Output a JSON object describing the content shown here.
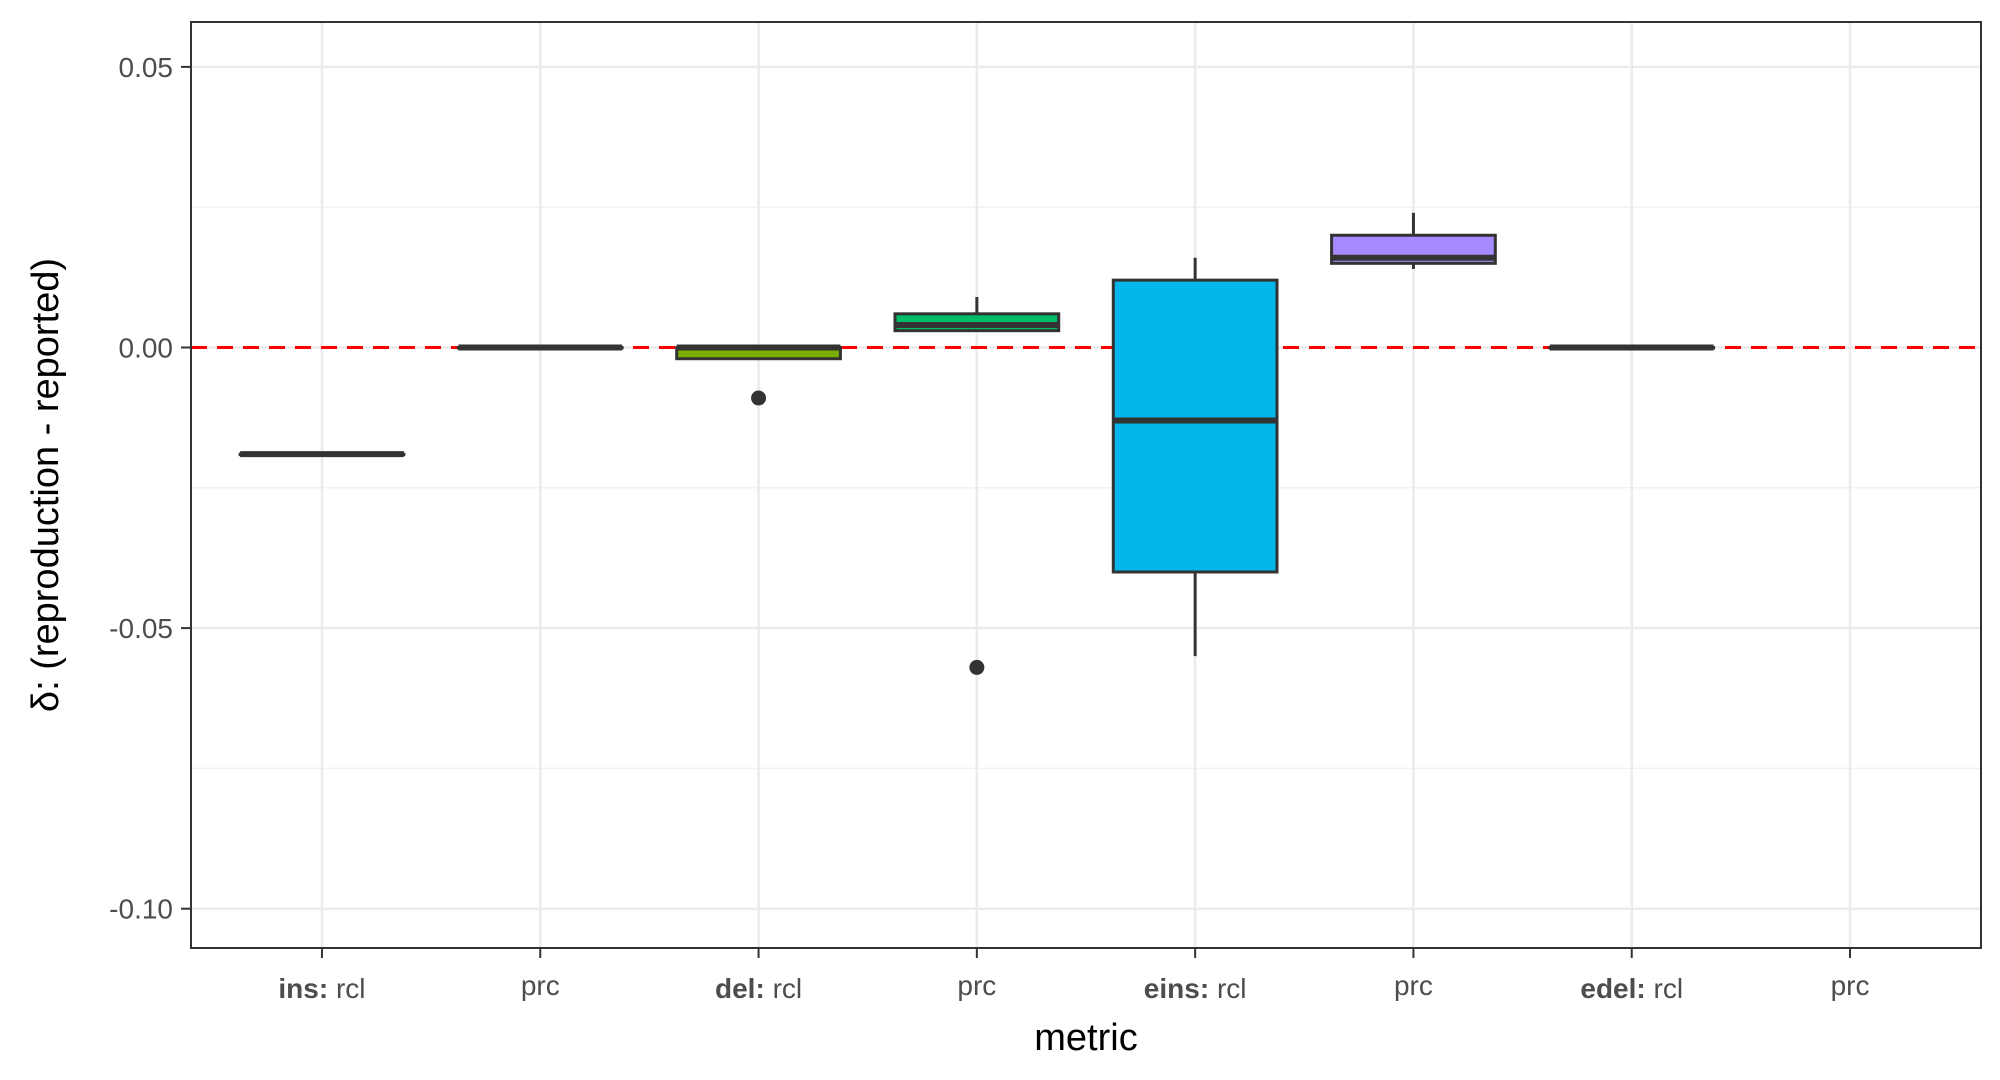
{
  "chart_data": {
    "type": "box",
    "xlabel": "metric",
    "ylabel": "δ: (reproduction - reported)",
    "ylim": [
      -0.107,
      0.058
    ],
    "y_ticks": [
      {
        "value": 0.05,
        "label": "0.05"
      },
      {
        "value": 0.0,
        "label": "0.00"
      },
      {
        "value": -0.05,
        "label": "-0.05"
      },
      {
        "value": -0.1,
        "label": "-0.10"
      }
    ],
    "y_minor_ticks": [
      0.025,
      -0.025,
      -0.075
    ],
    "reference_line": {
      "value": 0.0,
      "color": "#ff0000",
      "style": "dashed"
    },
    "grid": true,
    "categories": [
      {
        "prefix": "ins:",
        "label": "rcl"
      },
      {
        "prefix": "",
        "label": "prc"
      },
      {
        "prefix": "del:",
        "label": "rcl"
      },
      {
        "prefix": "",
        "label": "prc"
      },
      {
        "prefix": "eins:",
        "label": "rcl"
      },
      {
        "prefix": "",
        "label": "prc"
      },
      {
        "prefix": "edel:",
        "label": "rcl"
      },
      {
        "prefix": "",
        "label": "prc"
      }
    ],
    "boxes": [
      {
        "category": 0,
        "fill": "#F8766D",
        "lower_whisker": -0.019,
        "q1": -0.019,
        "median": -0.019,
        "q3": -0.019,
        "upper_whisker": -0.019,
        "outliers": []
      },
      {
        "category": 1,
        "fill": "#CD9600",
        "lower_whisker": 0.0,
        "q1": 0.0,
        "median": 0.0,
        "q3": 0.0,
        "upper_whisker": 0.0,
        "outliers": []
      },
      {
        "category": 2,
        "fill": "#7CAE00",
        "lower_whisker": -0.002,
        "q1": -0.002,
        "median": 0.0,
        "q3": 0.0,
        "upper_whisker": 0.0,
        "outliers": [
          -0.009
        ]
      },
      {
        "category": 3,
        "fill": "#00BE67",
        "lower_whisker": 0.003,
        "q1": 0.003,
        "median": 0.004,
        "q3": 0.006,
        "upper_whisker": 0.009,
        "outliers": [
          -0.057
        ]
      },
      {
        "category": 4,
        "fill": "#00B6EB",
        "lower_whisker": -0.055,
        "q1": -0.04,
        "median": -0.013,
        "q3": 0.012,
        "upper_whisker": 0.016,
        "outliers": []
      },
      {
        "category": 5,
        "fill": "#A58AFF",
        "lower_whisker": 0.014,
        "q1": 0.015,
        "median": 0.016,
        "q3": 0.02,
        "upper_whisker": 0.024,
        "outliers": []
      },
      {
        "category": 6,
        "fill": "#F8766D",
        "lower_whisker": 0.0,
        "q1": 0.0,
        "median": 0.0,
        "q3": 0.0,
        "upper_whisker": 0.0,
        "outliers": []
      }
    ]
  }
}
